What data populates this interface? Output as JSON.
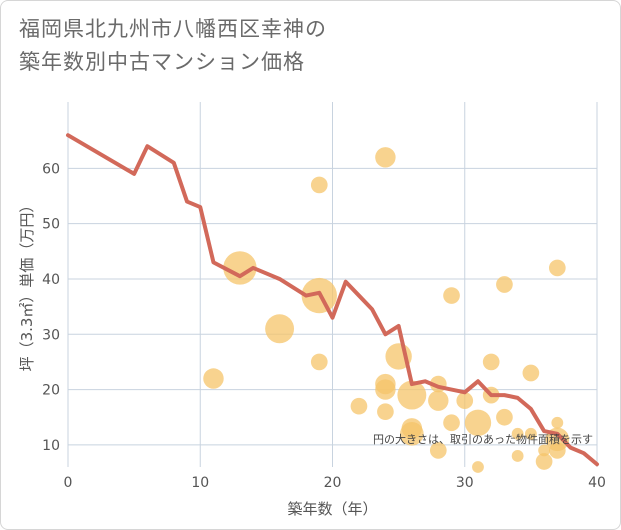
{
  "chart_data": {
    "type": "scatter",
    "title_line1": "福岡県北九州市八幡西区幸神の",
    "title_line2": "築年数別中古マンション価格",
    "xlabel": "築年数（年）",
    "ylabel": "坪（3.3㎡）単価（万円）",
    "xlim": [
      0,
      40
    ],
    "ylim": [
      6,
      72
    ],
    "x_ticks": [
      0,
      10,
      20,
      30,
      40
    ],
    "y_ticks": [
      10,
      20,
      30,
      40,
      50,
      60
    ],
    "note": "円の大きさは、取引のあった物件面積を示す",
    "colors": {
      "bubble": "#f5c46a",
      "line": "#d2695a",
      "grid": "#c8d3df",
      "plot_bg": "#ffffff"
    },
    "bubbles": [
      {
        "x": 11,
        "y": 22,
        "size": 3
      },
      {
        "x": 13,
        "y": 42,
        "size": 8
      },
      {
        "x": 16,
        "y": 31,
        "size": 6
      },
      {
        "x": 19,
        "y": 57,
        "size": 2
      },
      {
        "x": 19,
        "y": 37,
        "size": 9
      },
      {
        "x": 19,
        "y": 25,
        "size": 2
      },
      {
        "x": 22,
        "y": 17,
        "size": 2
      },
      {
        "x": 24,
        "y": 62,
        "size": 3
      },
      {
        "x": 24,
        "y": 21,
        "size": 3
      },
      {
        "x": 24,
        "y": 20,
        "size": 3
      },
      {
        "x": 24,
        "y": 16,
        "size": 2
      },
      {
        "x": 25,
        "y": 26,
        "size": 5
      },
      {
        "x": 26,
        "y": 19,
        "size": 6
      },
      {
        "x": 26,
        "y": 13,
        "size": 3
      },
      {
        "x": 26,
        "y": 12,
        "size": 4
      },
      {
        "x": 28,
        "y": 21,
        "size": 2
      },
      {
        "x": 28,
        "y": 18,
        "size": 3
      },
      {
        "x": 28,
        "y": 9,
        "size": 2
      },
      {
        "x": 29,
        "y": 37,
        "size": 2
      },
      {
        "x": 29,
        "y": 14,
        "size": 2
      },
      {
        "x": 30,
        "y": 18,
        "size": 2
      },
      {
        "x": 31,
        "y": 14,
        "size": 5
      },
      {
        "x": 31,
        "y": 6,
        "size": 1
      },
      {
        "x": 32,
        "y": 25,
        "size": 2
      },
      {
        "x": 32,
        "y": 19,
        "size": 2
      },
      {
        "x": 33,
        "y": 39,
        "size": 2
      },
      {
        "x": 33,
        "y": 15,
        "size": 2
      },
      {
        "x": 34,
        "y": 12,
        "size": 1
      },
      {
        "x": 34,
        "y": 8,
        "size": 1
      },
      {
        "x": 35,
        "y": 23,
        "size": 2
      },
      {
        "x": 35,
        "y": 12,
        "size": 1
      },
      {
        "x": 36,
        "y": 9,
        "size": 1
      },
      {
        "x": 36,
        "y": 7,
        "size": 2
      },
      {
        "x": 37,
        "y": 42,
        "size": 2
      },
      {
        "x": 37,
        "y": 14,
        "size": 1
      },
      {
        "x": 37,
        "y": 11,
        "size": 4
      },
      {
        "x": 37,
        "y": 9,
        "size": 2
      }
    ],
    "trend_line": {
      "x": [
        0,
        5,
        6,
        8,
        9,
        10,
        11,
        13,
        14,
        15,
        16,
        18,
        19,
        20,
        21,
        22,
        23,
        24,
        25,
        26,
        27,
        28,
        29,
        30,
        31,
        32,
        33,
        34,
        35,
        36,
        37,
        38,
        39,
        40
      ],
      "y": [
        66,
        59,
        64,
        61,
        54,
        53,
        43,
        40.5,
        42,
        41,
        40,
        37,
        37.5,
        33,
        39.5,
        37,
        34.5,
        30,
        31.5,
        21,
        21.5,
        20.5,
        20,
        19.5,
        21.5,
        19,
        19,
        18.5,
        16.5,
        12.5,
        12,
        9.5,
        8.5,
        6.5
      ]
    }
  }
}
